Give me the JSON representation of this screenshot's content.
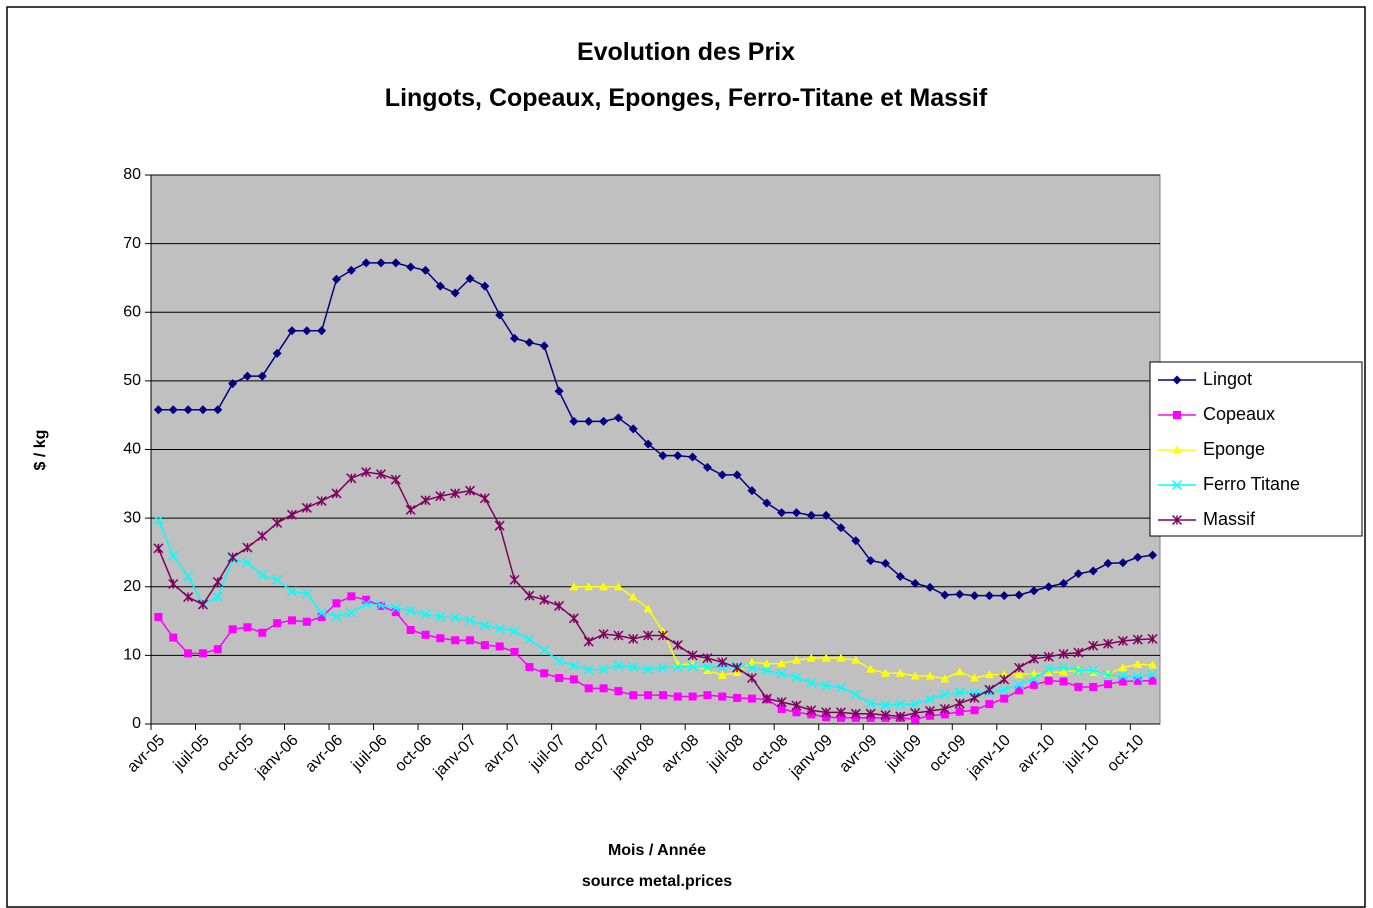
{
  "chart_data": {
    "type": "line",
    "title": "Evolution des Prix",
    "subtitle": "Lingots, Copeaux, Eponges, Ferro-Titane et Massif",
    "y_label": "$ / kg",
    "x_label": "Mois / Année",
    "source": "source metal.prices",
    "categories": [
      "avr-05",
      null,
      null,
      "juil-05",
      null,
      null,
      "oct-05",
      null,
      null,
      "janv-06",
      null,
      null,
      "avr-06",
      null,
      null,
      "juil-06",
      null,
      null,
      "oct-06",
      null,
      null,
      "janv-07",
      null,
      null,
      "avr-07",
      null,
      null,
      "juil-07",
      null,
      null,
      "oct-07",
      null,
      null,
      "janv-08",
      null,
      null,
      "avr-08",
      null,
      null,
      "juil-08",
      null,
      null,
      "oct-08",
      null,
      null,
      "janv-09",
      null,
      null,
      "avr-09",
      null,
      null,
      "juil-09",
      null,
      null,
      "oct-09",
      null,
      null,
      "janv-10",
      null,
      null,
      "avr-10",
      null,
      null,
      "juil-10",
      null,
      null,
      "oct-10",
      null
    ],
    "ylim": [
      0,
      80
    ],
    "yticks": [
      0,
      10,
      20,
      30,
      40,
      50,
      60,
      70,
      80
    ],
    "grid": true,
    "legend": "right",
    "series": [
      {
        "name": "Lingot",
        "color": "#000080",
        "marker": "diamond",
        "values": [
          45.8,
          45.8,
          45.8,
          45.8,
          45.8,
          49.6,
          50.7,
          50.7,
          54,
          57.3,
          57.3,
          57.3,
          64.8,
          66.1,
          67.2,
          67.2,
          67.2,
          66.6,
          66.1,
          63.8,
          62.8,
          64.9,
          63.8,
          59.6,
          56.2,
          55.6,
          55.1,
          48.5,
          44.1,
          44.1,
          44.1,
          44.6,
          43,
          40.8,
          39.1,
          39.1,
          38.9,
          37.4,
          36.3,
          36.3,
          34,
          32.2,
          30.8,
          30.8,
          30.4,
          30.4,
          28.6,
          26.7,
          23.8,
          23.4,
          21.5,
          20.5,
          19.9,
          18.8,
          18.9,
          18.7,
          18.7,
          18.7,
          18.8,
          19.4,
          20,
          20.5,
          21.9,
          22.3,
          23.4,
          23.5,
          24.3,
          24.6
        ]
      },
      {
        "name": "Copeaux",
        "color": "#ff00ff",
        "marker": "square",
        "values": [
          15.6,
          12.6,
          10.3,
          10.3,
          10.9,
          13.8,
          14.1,
          13.3,
          14.7,
          15.1,
          14.9,
          15.6,
          17.6,
          18.6,
          18.1,
          17.2,
          16.3,
          13.7,
          13,
          12.5,
          12.2,
          12.2,
          11.5,
          11.3,
          10.5,
          8.3,
          7.4,
          6.7,
          6.5,
          5.2,
          5.2,
          4.8,
          4.2,
          4.2,
          4.2,
          4,
          4,
          4.2,
          4,
          3.8,
          3.7,
          3.6,
          2.2,
          1.7,
          1.4,
          1,
          0.9,
          0.9,
          0.9,
          0.9,
          0.9,
          0.7,
          1.2,
          1.4,
          1.8,
          2,
          2.9,
          3.7,
          4.9,
          5.7,
          6.3,
          6.2,
          5.4,
          5.4,
          5.8,
          6.2,
          6.3,
          6.3
        ]
      },
      {
        "name": "Eponge",
        "color": "#ffff00",
        "marker": "triangle",
        "values": [
          null,
          null,
          null,
          null,
          null,
          null,
          null,
          null,
          null,
          null,
          null,
          null,
          null,
          null,
          null,
          null,
          null,
          null,
          null,
          null,
          null,
          null,
          null,
          null,
          null,
          null,
          null,
          null,
          20,
          20,
          20,
          20,
          18.5,
          16.8,
          13.5,
          8.7,
          8.7,
          7.8,
          7.1,
          7.5,
          9,
          8.8,
          8.8,
          9.3,
          9.6,
          9.6,
          9.6,
          9.3,
          8,
          7.4,
          7.4,
          7,
          7,
          6.6,
          7.6,
          6.7,
          7.2,
          7.2,
          7.2,
          7.3,
          7.5,
          7.6,
          7.9,
          7.5,
          7.3,
          8.2,
          8.7,
          8.6
        ]
      },
      {
        "name": "Ferro Titane",
        "color": "#00ffff",
        "marker": "x",
        "values": [
          29.7,
          24.5,
          21.5,
          17.5,
          18.5,
          24,
          23.5,
          21.7,
          21,
          19.3,
          19,
          16.2,
          15.7,
          16.2,
          17.5,
          17.3,
          16.9,
          16.5,
          16,
          15.6,
          15.5,
          15.1,
          14.4,
          13.9,
          13.5,
          12.3,
          10.8,
          9.2,
          8.5,
          7.9,
          8,
          8.5,
          8.3,
          8,
          8.2,
          8.3,
          8.4,
          8.3,
          8.3,
          8.4,
          8.2,
          7.8,
          7.3,
          6.8,
          6,
          5.6,
          5.3,
          4.3,
          3,
          2.8,
          2.9,
          2.9,
          3.6,
          4.3,
          4.6,
          4.5,
          4.6,
          5,
          5.7,
          6.6,
          8,
          8.3,
          7.8,
          7.8,
          7.1,
          7,
          6.9,
          7.2
        ]
      },
      {
        "name": "Massif",
        "color": "#800060",
        "marker": "star",
        "values": [
          25.6,
          20.4,
          18.5,
          17.4,
          20.7,
          24.3,
          25.7,
          27.4,
          29.3,
          30.5,
          31.5,
          32.5,
          33.6,
          35.8,
          36.7,
          36.4,
          35.6,
          31.2,
          32.6,
          33.2,
          33.6,
          34,
          32.9,
          28.9,
          21,
          18.7,
          18.1,
          17.2,
          15.4,
          12,
          13.1,
          12.9,
          12.4,
          12.9,
          12.9,
          11.5,
          10,
          9.6,
          9,
          8.2,
          6.7,
          3.7,
          3.2,
          2.7,
          2,
          1.7,
          1.7,
          1.5,
          1.5,
          1.3,
          1.1,
          1.6,
          1.9,
          2.2,
          3,
          3.8,
          5,
          6.5,
          8.2,
          9.5,
          9.8,
          10.2,
          10.4,
          11.4,
          11.7,
          12.1,
          12.3,
          12.4
        ]
      }
    ]
  }
}
